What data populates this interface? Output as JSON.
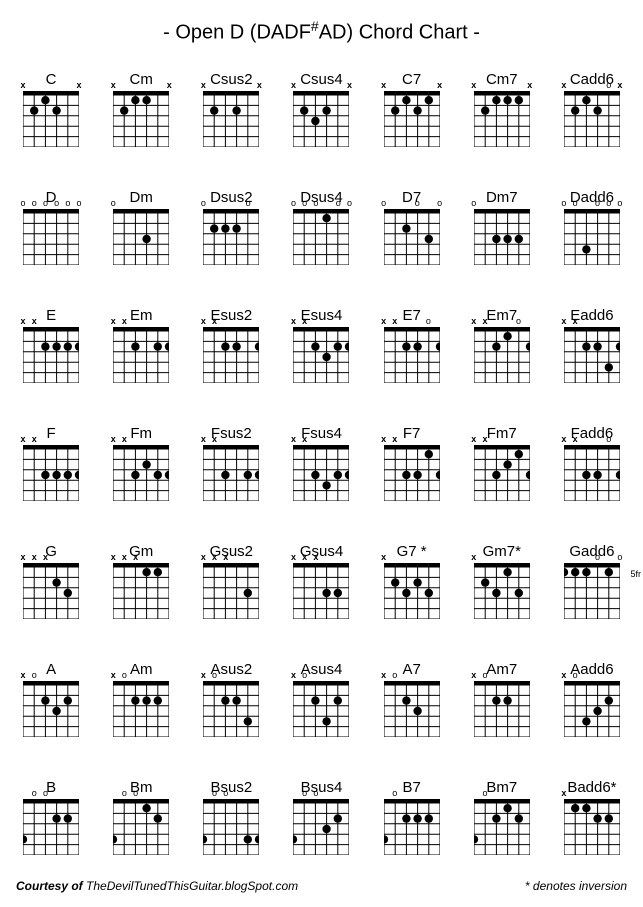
{
  "title_prefix": "- Open D (DADF",
  "title_sharp": "#",
  "title_suffix": "AD) Chord Chart -",
  "footer_left_bold": "Courtesy of ",
  "footer_left_rest": "TheDevilTunedThisGuitar.blogSpot.com",
  "footer_right": "* denotes inversion",
  "diagram": {
    "strings": 6,
    "frets": 5,
    "width": 56,
    "height": 56,
    "nut_height": 4,
    "line_color": "#000000",
    "bg_color": "#ffffff",
    "dot_radius": 4.2,
    "marker_o": "o",
    "marker_x": "x"
  },
  "chords": [
    {
      "name": "C",
      "markers": [
        "x",
        "",
        "",
        "",
        "",
        "x"
      ],
      "dots": [
        [
          2,
          2
        ],
        [
          3,
          1
        ],
        [
          4,
          2
        ]
      ],
      "fret_label": ""
    },
    {
      "name": "Cm",
      "markers": [
        "x",
        "",
        "",
        "",
        "",
        "x"
      ],
      "dots": [
        [
          2,
          2
        ],
        [
          3,
          1
        ],
        [
          4,
          1
        ]
      ],
      "fret_label": ""
    },
    {
      "name": "Csus2",
      "markers": [
        "x",
        "",
        "",
        "",
        "",
        "x"
      ],
      "dots": [
        [
          2,
          2
        ],
        [
          4,
          2
        ]
      ],
      "fret_label": ""
    },
    {
      "name": "Csus4",
      "markers": [
        "x",
        "",
        "",
        "",
        "",
        "x"
      ],
      "dots": [
        [
          2,
          2
        ],
        [
          3,
          3
        ],
        [
          4,
          2
        ]
      ],
      "fret_label": ""
    },
    {
      "name": "C7",
      "markers": [
        "x",
        "",
        "",
        "",
        "",
        "x"
      ],
      "dots": [
        [
          2,
          2
        ],
        [
          3,
          1
        ],
        [
          4,
          2
        ],
        [
          5,
          1
        ]
      ],
      "fret_label": ""
    },
    {
      "name": "Cm7",
      "markers": [
        "x",
        "",
        "",
        "",
        "",
        "x"
      ],
      "dots": [
        [
          2,
          2
        ],
        [
          3,
          1
        ],
        [
          4,
          1
        ],
        [
          5,
          1
        ]
      ],
      "fret_label": ""
    },
    {
      "name": "Cadd6",
      "markers": [
        "x",
        "",
        "",
        "",
        "o",
        "x"
      ],
      "dots": [
        [
          2,
          2
        ],
        [
          3,
          1
        ],
        [
          4,
          2
        ]
      ],
      "fret_label": ""
    },
    {
      "name": "D",
      "markers": [
        "o",
        "o",
        "o",
        "o",
        "o",
        "o"
      ],
      "dots": [],
      "fret_label": ""
    },
    {
      "name": "Dm",
      "markers": [
        "o",
        "",
        "",
        "",
        "",
        ""
      ],
      "dots": [
        [
          4,
          3
        ]
      ],
      "fret_label": ""
    },
    {
      "name": "Dsus2",
      "markers": [
        "o",
        "",
        "",
        "",
        "o",
        ""
      ],
      "dots": [
        [
          2,
          2
        ],
        [
          3,
          2
        ],
        [
          4,
          2
        ]
      ],
      "fret_label": ""
    },
    {
      "name": "Dsus4",
      "markers": [
        "o",
        "o",
        "o",
        "",
        "o",
        "o"
      ],
      "dots": [
        [
          4,
          1
        ]
      ],
      "fret_label": ""
    },
    {
      "name": "D7",
      "markers": [
        "o",
        "",
        "",
        "o",
        "",
        "o"
      ],
      "dots": [
        [
          3,
          2
        ],
        [
          5,
          3
        ]
      ],
      "fret_label": ""
    },
    {
      "name": "Dm7",
      "markers": [
        "o",
        "",
        "",
        "",
        "",
        ""
      ],
      "dots": [
        [
          3,
          3
        ],
        [
          4,
          3
        ],
        [
          5,
          3
        ]
      ],
      "fret_label": ""
    },
    {
      "name": "Dadd6",
      "markers": [
        "o",
        "o",
        "",
        "o",
        "o",
        "o"
      ],
      "dots": [
        [
          3,
          4
        ]
      ],
      "fret_label": ""
    },
    {
      "name": "E",
      "markers": [
        "x",
        "x",
        "",
        "",
        "",
        ""
      ],
      "dots": [
        [
          3,
          2
        ],
        [
          4,
          2
        ],
        [
          5,
          2
        ],
        [
          6,
          2
        ]
      ],
      "fret_label": ""
    },
    {
      "name": "Em",
      "markers": [
        "x",
        "x",
        "",
        "",
        "",
        ""
      ],
      "dots": [
        [
          3,
          2
        ],
        [
          5,
          2
        ],
        [
          6,
          2
        ]
      ],
      "fret_label": ""
    },
    {
      "name": "Esus2",
      "markers": [
        "x",
        "x",
        "",
        "",
        "",
        ""
      ],
      "dots": [
        [
          3,
          2
        ],
        [
          4,
          2
        ],
        [
          6,
          2
        ]
      ],
      "fret_label": ""
    },
    {
      "name": "Esus4",
      "markers": [
        "x",
        "x",
        "",
        "",
        "",
        ""
      ],
      "dots": [
        [
          3,
          2
        ],
        [
          4,
          3
        ],
        [
          5,
          2
        ],
        [
          6,
          2
        ]
      ],
      "fret_label": ""
    },
    {
      "name": "E7",
      "markers": [
        "x",
        "x",
        "",
        "",
        "o",
        ""
      ],
      "dots": [
        [
          3,
          2
        ],
        [
          4,
          2
        ],
        [
          6,
          2
        ]
      ],
      "fret_label": ""
    },
    {
      "name": "Em7",
      "markers": [
        "x",
        "x",
        "",
        "",
        "o",
        ""
      ],
      "dots": [
        [
          3,
          2
        ],
        [
          4,
          1
        ],
        [
          6,
          2
        ]
      ],
      "fret_label": ""
    },
    {
      "name": "Eadd6",
      "markers": [
        "x",
        "x",
        "",
        "",
        "",
        ""
      ],
      "dots": [
        [
          3,
          2
        ],
        [
          4,
          2
        ],
        [
          5,
          4
        ],
        [
          6,
          2
        ]
      ],
      "fret_label": ""
    },
    {
      "name": "F",
      "markers": [
        "x",
        "x",
        "",
        "",
        "",
        ""
      ],
      "dots": [
        [
          3,
          3
        ],
        [
          4,
          3
        ],
        [
          5,
          3
        ],
        [
          6,
          3
        ]
      ],
      "fret_label": ""
    },
    {
      "name": "Fm",
      "markers": [
        "x",
        "x",
        "",
        "",
        "",
        ""
      ],
      "dots": [
        [
          3,
          3
        ],
        [
          4,
          2
        ],
        [
          5,
          3
        ],
        [
          6,
          3
        ]
      ],
      "fret_label": ""
    },
    {
      "name": "Fsus2",
      "markers": [
        "x",
        "x",
        "",
        "",
        "",
        ""
      ],
      "dots": [
        [
          3,
          3
        ],
        [
          5,
          3
        ],
        [
          6,
          3
        ]
      ],
      "fret_label": ""
    },
    {
      "name": "Fsus4",
      "markers": [
        "x",
        "x",
        "",
        "",
        "",
        ""
      ],
      "dots": [
        [
          3,
          3
        ],
        [
          4,
          4
        ],
        [
          5,
          3
        ],
        [
          6,
          3
        ]
      ],
      "fret_label": ""
    },
    {
      "name": "F7",
      "markers": [
        "x",
        "x",
        "",
        "",
        "",
        ""
      ],
      "dots": [
        [
          3,
          3
        ],
        [
          4,
          3
        ],
        [
          5,
          1
        ],
        [
          6,
          3
        ]
      ],
      "fret_label": ""
    },
    {
      "name": "Fm7",
      "markers": [
        "x",
        "x",
        "",
        "",
        "",
        ""
      ],
      "dots": [
        [
          3,
          3
        ],
        [
          4,
          2
        ],
        [
          5,
          1
        ],
        [
          6,
          3
        ]
      ],
      "fret_label": ""
    },
    {
      "name": "Fadd6",
      "markers": [
        "x",
        "x",
        "",
        "",
        "o",
        ""
      ],
      "dots": [
        [
          3,
          3
        ],
        [
          4,
          3
        ],
        [
          6,
          3
        ]
      ],
      "fret_label": ""
    },
    {
      "name": "G",
      "markers": [
        "x",
        "x",
        "x",
        "",
        "",
        ""
      ],
      "dots": [
        [
          4,
          2
        ],
        [
          5,
          3
        ]
      ],
      "fret_label": ""
    },
    {
      "name": "Gm",
      "markers": [
        "x",
        "x",
        "x",
        "",
        "",
        ""
      ],
      "dots": [
        [
          4,
          1
        ],
        [
          5,
          1
        ]
      ],
      "fret_label": ""
    },
    {
      "name": "Gsus2",
      "markers": [
        "x",
        "x",
        "x",
        "",
        "",
        ""
      ],
      "dots": [
        [
          5,
          3
        ]
      ],
      "fret_label": ""
    },
    {
      "name": "Gsus4",
      "markers": [
        "x",
        "x",
        "x",
        "",
        "",
        ""
      ],
      "dots": [
        [
          4,
          3
        ],
        [
          5,
          3
        ]
      ],
      "fret_label": ""
    },
    {
      "name": "G7 *",
      "markers": [
        "x",
        "",
        "",
        "",
        "",
        ""
      ],
      "dots": [
        [
          2,
          2
        ],
        [
          3,
          3
        ],
        [
          4,
          2
        ],
        [
          5,
          3
        ]
      ],
      "fret_label": ""
    },
    {
      "name": "Gm7*",
      "markers": [
        "x",
        "",
        "",
        "",
        "",
        ""
      ],
      "dots": [
        [
          2,
          2
        ],
        [
          3,
          3
        ],
        [
          4,
          1
        ],
        [
          5,
          3
        ]
      ],
      "fret_label": ""
    },
    {
      "name": "Gadd6",
      "markers": [
        "",
        "",
        "",
        "o",
        "",
        "o"
      ],
      "dots": [
        [
          1,
          1
        ],
        [
          2,
          1
        ],
        [
          3,
          1
        ],
        [
          5,
          1
        ]
      ],
      "fret_label": "5fr"
    },
    {
      "name": "A",
      "markers": [
        "x",
        "o",
        "",
        "",
        "",
        ""
      ],
      "dots": [
        [
          3,
          2
        ],
        [
          4,
          3
        ],
        [
          5,
          2
        ]
      ],
      "fret_label": ""
    },
    {
      "name": "Am",
      "markers": [
        "x",
        "o",
        "",
        "",
        "",
        ""
      ],
      "dots": [
        [
          3,
          2
        ],
        [
          4,
          2
        ],
        [
          5,
          2
        ]
      ],
      "fret_label": ""
    },
    {
      "name": "Asus2",
      "markers": [
        "x",
        "o",
        "",
        "",
        "",
        ""
      ],
      "dots": [
        [
          3,
          2
        ],
        [
          4,
          2
        ],
        [
          5,
          4
        ]
      ],
      "fret_label": ""
    },
    {
      "name": "Asus4",
      "markers": [
        "x",
        "o",
        "",
        "",
        "",
        ""
      ],
      "dots": [
        [
          3,
          2
        ],
        [
          4,
          4
        ],
        [
          5,
          2
        ]
      ],
      "fret_label": ""
    },
    {
      "name": "A7",
      "markers": [
        "x",
        "o",
        "",
        "",
        "",
        ""
      ],
      "dots": [
        [
          3,
          2
        ],
        [
          4,
          3
        ]
      ],
      "fret_label": ""
    },
    {
      "name": "Am7",
      "markers": [
        "x",
        "o",
        "",
        "",
        "",
        ""
      ],
      "dots": [
        [
          3,
          2
        ],
        [
          4,
          2
        ]
      ],
      "fret_label": ""
    },
    {
      "name": "Aadd6",
      "markers": [
        "x",
        "o",
        "",
        "",
        "",
        ""
      ],
      "dots": [
        [
          3,
          4
        ],
        [
          4,
          3
        ],
        [
          5,
          2
        ]
      ],
      "fret_label": ""
    },
    {
      "name": "B",
      "markers": [
        "",
        "o",
        "o",
        "",
        "",
        ""
      ],
      "dots": [
        [
          1,
          4
        ],
        [
          4,
          2
        ],
        [
          5,
          2
        ]
      ],
      "fret_label": ""
    },
    {
      "name": "Bm",
      "markers": [
        "",
        "o",
        "o",
        "",
        "",
        ""
      ],
      "dots": [
        [
          1,
          4
        ],
        [
          4,
          1
        ],
        [
          5,
          2
        ]
      ],
      "fret_label": ""
    },
    {
      "name": "Bsus2",
      "markers": [
        "",
        "o",
        "o",
        "",
        "",
        ""
      ],
      "dots": [
        [
          1,
          4
        ],
        [
          5,
          4
        ],
        [
          6,
          4
        ]
      ],
      "fret_label": ""
    },
    {
      "name": "Bsus4",
      "markers": [
        "",
        "o",
        "o",
        "",
        "",
        ""
      ],
      "dots": [
        [
          1,
          4
        ],
        [
          4,
          3
        ],
        [
          5,
          2
        ]
      ],
      "fret_label": ""
    },
    {
      "name": "B7",
      "markers": [
        "",
        "o",
        "",
        "",
        "",
        ""
      ],
      "dots": [
        [
          1,
          4
        ],
        [
          3,
          2
        ],
        [
          4,
          2
        ],
        [
          5,
          2
        ]
      ],
      "fret_label": ""
    },
    {
      "name": "Bm7",
      "markers": [
        "",
        "o",
        "",
        "",
        "",
        ""
      ],
      "dots": [
        [
          1,
          4
        ],
        [
          3,
          2
        ],
        [
          4,
          1
        ],
        [
          5,
          2
        ]
      ],
      "fret_label": ""
    },
    {
      "name": "Badd6*",
      "markers": [
        "x",
        "",
        "",
        "",
        "",
        ""
      ],
      "dots": [
        [
          2,
          1
        ],
        [
          3,
          1
        ],
        [
          4,
          2
        ],
        [
          5,
          2
        ]
      ],
      "fret_label": ""
    }
  ]
}
